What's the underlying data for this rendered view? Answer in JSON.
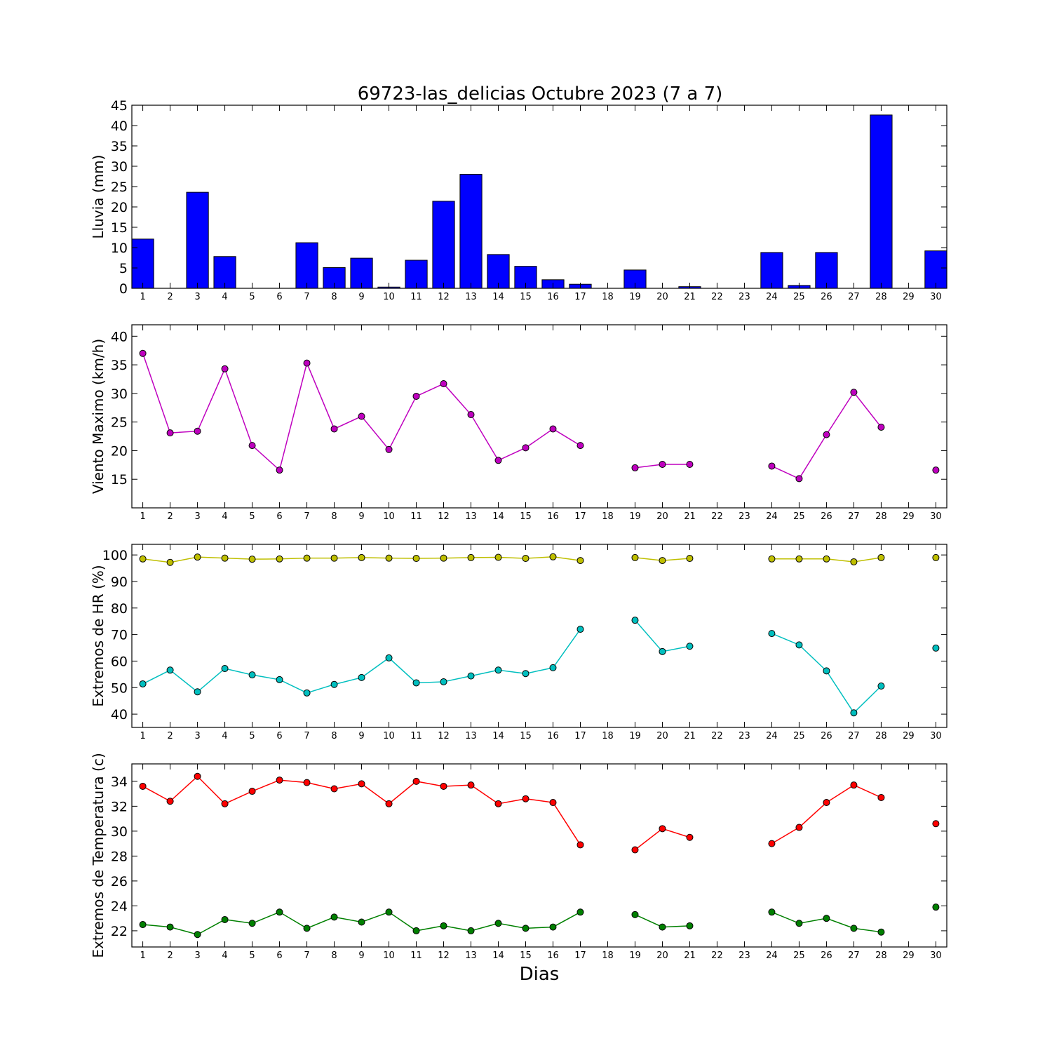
{
  "title": "69723-las_delicias Octubre 2023  (7 a 7)",
  "xlabel": "Dias",
  "days": [
    1,
    2,
    3,
    4,
    5,
    6,
    7,
    8,
    9,
    10,
    11,
    12,
    13,
    14,
    15,
    16,
    17,
    18,
    19,
    20,
    21,
    22,
    23,
    24,
    25,
    26,
    27,
    28,
    29,
    30
  ],
  "colors": {
    "rain": "#0000ff",
    "wind": "#bf00bf",
    "hr_max": "#bfbf00",
    "hr_min": "#00bfbf",
    "temp_max": "#ff0000",
    "temp_min": "#008000"
  },
  "chart_data": [
    {
      "type": "bar",
      "ylabel": "Lluvia (mm)",
      "ylim": [
        0,
        45
      ],
      "yticks": [
        0,
        5,
        10,
        15,
        20,
        25,
        30,
        35,
        40,
        45
      ],
      "categories": [
        1,
        2,
        3,
        4,
        5,
        6,
        7,
        8,
        9,
        10,
        11,
        12,
        13,
        14,
        15,
        16,
        17,
        18,
        19,
        20,
        21,
        22,
        23,
        24,
        25,
        26,
        27,
        28,
        29,
        30
      ],
      "series": [
        {
          "color_key": "rain",
          "values": [
            12.1,
            0,
            23.6,
            7.8,
            0,
            0,
            11.2,
            5.1,
            7.4,
            0.3,
            6.9,
            21.4,
            28.0,
            8.3,
            5.4,
            2.1,
            1.0,
            0,
            4.5,
            0,
            0.4,
            0,
            0,
            8.8,
            0.7,
            8.8,
            0,
            42.6,
            0,
            9.2
          ]
        }
      ]
    },
    {
      "type": "line",
      "ylabel": "Viento Maximo (km/h)",
      "ylim": [
        10,
        42
      ],
      "yticks": [
        15,
        20,
        25,
        30,
        35,
        40
      ],
      "series": [
        {
          "color_key": "wind",
          "values": [
            37.0,
            23.1,
            23.4,
            34.3,
            20.9,
            16.6,
            35.3,
            23.8,
            26.0,
            20.2,
            29.5,
            31.7,
            26.3,
            18.3,
            20.5,
            23.8,
            20.9,
            null,
            17.0,
            17.6,
            17.6,
            null,
            null,
            17.3,
            15.1,
            22.8,
            30.2,
            24.1,
            null,
            16.6
          ]
        }
      ]
    },
    {
      "type": "line",
      "ylabel": "Extremos de HR (%)",
      "ylim": [
        35,
        104
      ],
      "yticks": [
        40,
        50,
        60,
        70,
        80,
        90,
        100
      ],
      "series": [
        {
          "color_key": "hr_max",
          "values": [
            98.5,
            97.2,
            99.2,
            98.8,
            98.4,
            98.5,
            98.8,
            98.8,
            99.0,
            98.8,
            98.7,
            98.8,
            99.0,
            99.1,
            98.7,
            99.3,
            97.9,
            null,
            99.0,
            97.9,
            98.7,
            null,
            null,
            98.5,
            98.5,
            98.5,
            97.4,
            99.0,
            null,
            99.0
          ]
        },
        {
          "color_key": "hr_min",
          "values": [
            51.4,
            56.6,
            48.4,
            57.2,
            54.8,
            53.0,
            48.0,
            51.2,
            53.8,
            61.2,
            51.8,
            52.2,
            54.4,
            56.6,
            55.3,
            57.5,
            72.0,
            null,
            75.4,
            63.6,
            65.6,
            null,
            null,
            70.4,
            66.1,
            56.3,
            40.5,
            50.6,
            null,
            64.9
          ]
        }
      ]
    },
    {
      "type": "line",
      "ylabel": "Extremos de Temperatura (c)",
      "ylim": [
        20.7,
        35.4
      ],
      "yticks": [
        22,
        24,
        26,
        28,
        30,
        32,
        34
      ],
      "series": [
        {
          "color_key": "temp_max",
          "values": [
            33.6,
            32.4,
            34.4,
            32.2,
            33.2,
            34.1,
            33.9,
            33.4,
            33.8,
            32.2,
            34.0,
            33.6,
            33.7,
            32.2,
            32.6,
            32.3,
            28.9,
            null,
            28.5,
            30.2,
            29.5,
            null,
            null,
            29.0,
            30.3,
            32.3,
            33.7,
            32.7,
            null,
            30.6
          ]
        },
        {
          "color_key": "temp_min",
          "values": [
            22.5,
            22.3,
            21.7,
            22.9,
            22.6,
            23.5,
            22.2,
            23.1,
            22.7,
            23.5,
            22.0,
            22.4,
            22.0,
            22.6,
            22.2,
            22.3,
            23.5,
            null,
            23.3,
            22.3,
            22.4,
            null,
            null,
            23.5,
            22.6,
            23.0,
            22.2,
            21.9,
            null,
            23.9
          ]
        }
      ]
    }
  ]
}
